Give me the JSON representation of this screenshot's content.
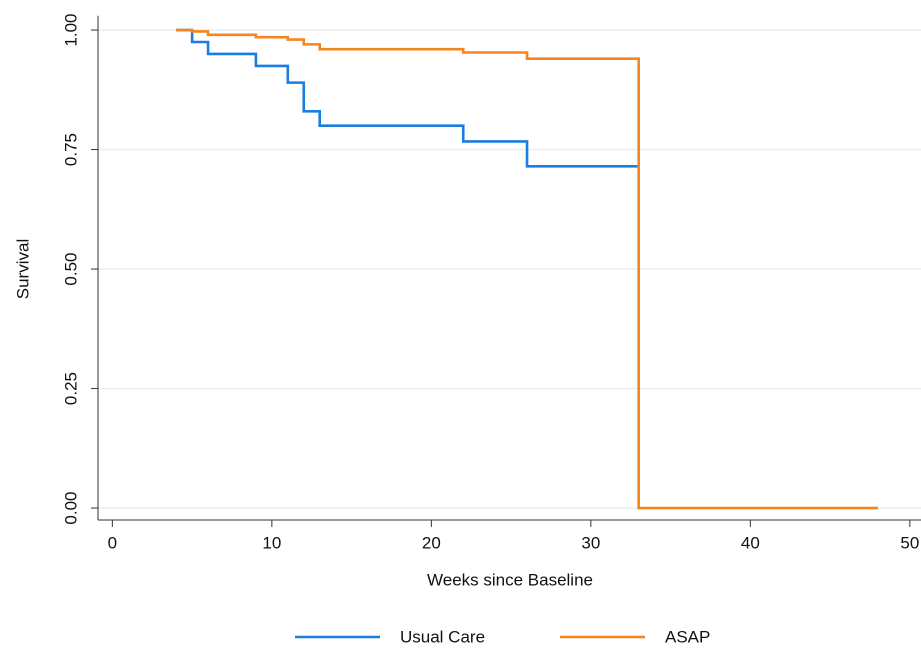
{
  "chart_data": {
    "type": "step",
    "xlabel": "Weeks since Baseline",
    "ylabel": "Survival",
    "xlim": [
      -0.9,
      50.7
    ],
    "ylim": [
      -0.025,
      1.03
    ],
    "xticks": [
      0,
      10,
      20,
      30,
      40,
      50
    ],
    "yticks": [
      {
        "value": 0,
        "label": "0.00"
      },
      {
        "value": 0.25,
        "label": "0.25"
      },
      {
        "value": 0.5,
        "label": "0.50"
      },
      {
        "value": 0.75,
        "label": "0.75"
      },
      {
        "value": 1,
        "label": "1.00"
      }
    ],
    "grid": true,
    "legend": "bottom",
    "series": [
      {
        "name": "Usual Care",
        "color": "#1a7de0",
        "x": [
          4,
          5,
          6,
          9,
          11,
          12,
          13,
          22,
          26,
          33
        ],
        "values": [
          1,
          0.975,
          0.95,
          0.925,
          0.89,
          0.83,
          0.8,
          0.767,
          0.715,
          0.715
        ]
      },
      {
        "name": "ASAP",
        "color": "#f5851f",
        "x": [
          4,
          5,
          6,
          9,
          11,
          12,
          13,
          22,
          26,
          33,
          48
        ],
        "values": [
          1,
          0.997,
          0.99,
          0.985,
          0.98,
          0.97,
          0.96,
          0.953,
          0.94,
          0,
          0
        ]
      }
    ]
  }
}
